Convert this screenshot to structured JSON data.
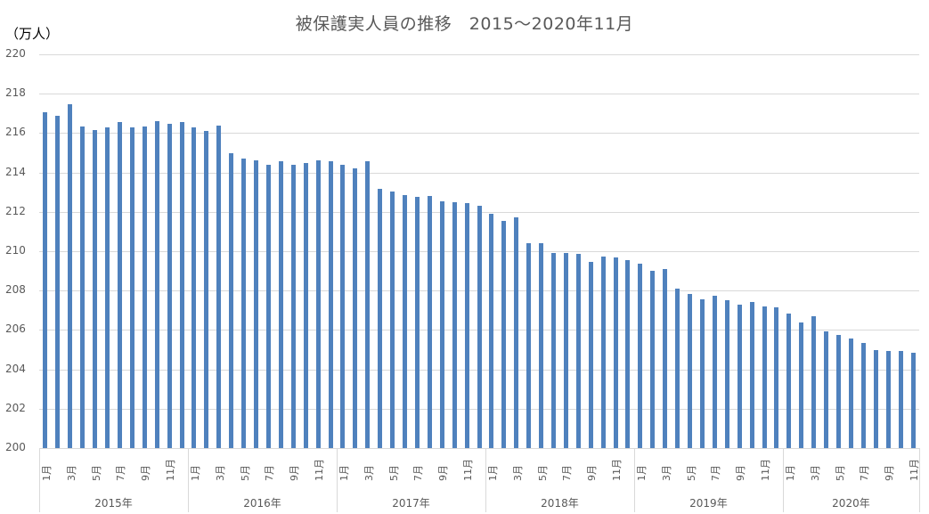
{
  "chart_data": {
    "type": "bar",
    "title": "被保護実人員の推移　2015～2020年11月",
    "ylabel": "（万人）",
    "xlabel": "",
    "ylim": [
      200,
      220
    ],
    "yticks": [
      "200",
      "202",
      "204",
      "206",
      "208",
      "210",
      "212",
      "214",
      "216",
      "218",
      "220"
    ],
    "grid": true,
    "legend": null,
    "bar_color": "#4f81bd",
    "years": [
      "2015年",
      "2016年",
      "2017年",
      "2018年",
      "2019年",
      "2020年"
    ],
    "month_tick_labels": [
      "1月",
      "3月",
      "5月",
      "7月",
      "9月",
      "11月"
    ],
    "categories": [
      "2015-01",
      "2015-02",
      "2015-03",
      "2015-04",
      "2015-05",
      "2015-06",
      "2015-07",
      "2015-08",
      "2015-09",
      "2015-10",
      "2015-11",
      "2015-12",
      "2016-01",
      "2016-02",
      "2016-03",
      "2016-04",
      "2016-05",
      "2016-06",
      "2016-07",
      "2016-08",
      "2016-09",
      "2016-10",
      "2016-11",
      "2016-12",
      "2017-01",
      "2017-02",
      "2017-03",
      "2017-04",
      "2017-05",
      "2017-06",
      "2017-07",
      "2017-08",
      "2017-09",
      "2017-10",
      "2017-11",
      "2017-12",
      "2018-01",
      "2018-02",
      "2018-03",
      "2018-04",
      "2018-05",
      "2018-06",
      "2018-07",
      "2018-08",
      "2018-09",
      "2018-10",
      "2018-11",
      "2018-12",
      "2019-01",
      "2019-02",
      "2019-03",
      "2019-04",
      "2019-05",
      "2019-06",
      "2019-07",
      "2019-08",
      "2019-09",
      "2019-10",
      "2019-11",
      "2019-12",
      "2020-01",
      "2020-02",
      "2020-03",
      "2020-04",
      "2020-05",
      "2020-06",
      "2020-07",
      "2020-08",
      "2020-09",
      "2020-10",
      "2020-11"
    ],
    "values": [
      217.05,
      216.9,
      217.45,
      216.35,
      216.15,
      216.3,
      216.55,
      216.3,
      216.35,
      216.6,
      216.45,
      216.55,
      216.3,
      216.1,
      216.4,
      215.0,
      214.7,
      214.6,
      214.4,
      214.55,
      214.4,
      214.5,
      214.6,
      214.55,
      214.4,
      214.2,
      214.55,
      213.15,
      213.05,
      212.85,
      212.75,
      212.8,
      212.55,
      212.5,
      212.45,
      212.3,
      211.9,
      211.55,
      211.7,
      210.4,
      210.4,
      209.9,
      209.9,
      209.85,
      209.45,
      209.75,
      209.7,
      209.55,
      209.35,
      209.0,
      209.1,
      208.1,
      207.85,
      207.55,
      207.75,
      207.5,
      207.3,
      207.4,
      207.2,
      207.15,
      206.85,
      206.4,
      206.7,
      205.95,
      205.75,
      205.55,
      205.35,
      205.0,
      204.95,
      204.95,
      204.85
    ]
  }
}
